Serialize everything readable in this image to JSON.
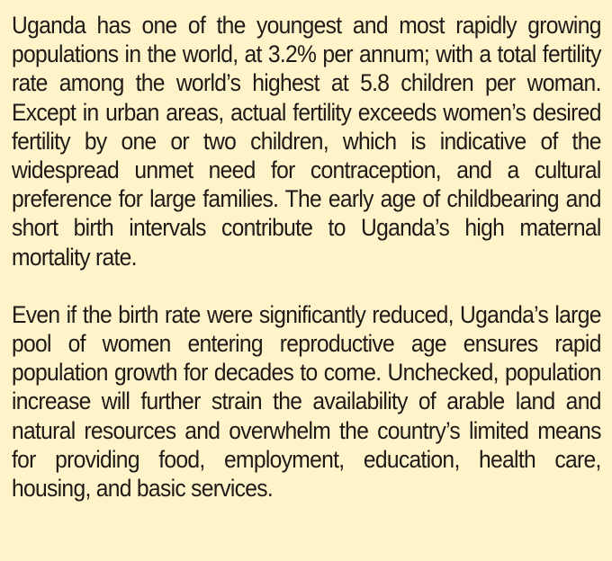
{
  "document": {
    "paragraphs": [
      "Uganda has one of the youngest and most rapidly growing populations in the world, at 3.2% per annum; with a total fertility rate among the world’s highest at 5.8 children per woman. Except in urban areas, actual fertility exceeds women’s desired fertility by one or two children, which is indicative of the widespread unmet need for contraception, and a cultural preference for large families. The early age of childbearing and short birth intervals contribute to Uganda’s high maternal mortality rate.",
      "Even if the birth rate were significantly reduced, Uganda’s large pool of women entering reproductive age ensures rapid population growth for decades to come. Unchecked, population increase will further strain the availability of arable land and natural resources and overwhelm the country’s limited means for providing food, employment, education, health care, housing, and basic services."
    ]
  },
  "colors": {
    "background": "#fff3c9",
    "text": "#1e1a17"
  }
}
